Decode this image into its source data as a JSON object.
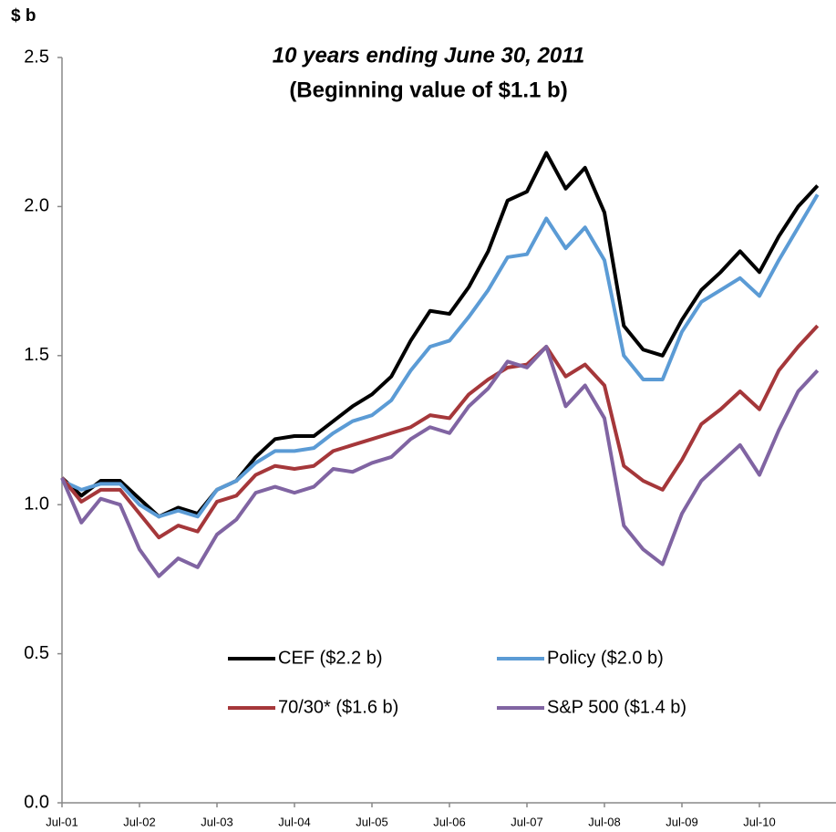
{
  "chart_data": {
    "type": "line",
    "title": "10 years ending June 30, 2011",
    "subtitle": "(Beginning value of $1.1 b)",
    "y_label": "$ b",
    "categories": [
      "Jul-01",
      null,
      null,
      null,
      "Jul-02",
      null,
      null,
      null,
      "Jul-03",
      null,
      null,
      null,
      "Jul-04",
      null,
      null,
      null,
      "Jul-05",
      null,
      null,
      null,
      "Jul-06",
      null,
      null,
      null,
      "Jul-07",
      null,
      null,
      null,
      "Jul-08",
      null,
      null,
      null,
      "Jul-09",
      null,
      null,
      null,
      "Jul-10",
      null,
      null,
      null
    ],
    "series": [
      {
        "name": "CEF ($2.2 b)",
        "color": "#000000",
        "values": [
          1.09,
          1.03,
          1.08,
          1.08,
          1.02,
          0.96,
          0.99,
          0.97,
          1.05,
          1.08,
          1.16,
          1.22,
          1.23,
          1.23,
          1.28,
          1.33,
          1.37,
          1.43,
          1.55,
          1.65,
          1.64,
          1.73,
          1.85,
          2.02,
          2.05,
          2.18,
          2.06,
          2.13,
          1.98,
          1.6,
          1.52,
          1.5,
          1.62,
          1.72,
          1.78,
          1.85,
          1.78,
          1.9,
          2.0,
          2.07
        ]
      },
      {
        "name": "Policy ($2.0 b)",
        "color": "#5b9bd5",
        "values": [
          1.08,
          1.05,
          1.07,
          1.07,
          1.0,
          0.96,
          0.98,
          0.96,
          1.05,
          1.08,
          1.14,
          1.18,
          1.18,
          1.19,
          1.24,
          1.28,
          1.3,
          1.35,
          1.45,
          1.53,
          1.55,
          1.63,
          1.72,
          1.83,
          1.84,
          1.96,
          1.86,
          1.93,
          1.82,
          1.5,
          1.42,
          1.42,
          1.58,
          1.68,
          1.72,
          1.76,
          1.7,
          1.82,
          1.93,
          2.04
        ]
      },
      {
        "name": "70/30* ($1.6 b)",
        "color": "#a5373a",
        "values": [
          1.09,
          1.01,
          1.05,
          1.05,
          0.97,
          0.89,
          0.93,
          0.91,
          1.01,
          1.03,
          1.1,
          1.13,
          1.12,
          1.13,
          1.18,
          1.2,
          1.22,
          1.24,
          1.26,
          1.3,
          1.29,
          1.37,
          1.42,
          1.46,
          1.47,
          1.53,
          1.43,
          1.47,
          1.4,
          1.13,
          1.08,
          1.05,
          1.15,
          1.27,
          1.32,
          1.38,
          1.32,
          1.45,
          1.53,
          1.6
        ]
      },
      {
        "name": "S&P 500 ($1.4 b)",
        "color": "#8064a2",
        "values": [
          1.09,
          0.94,
          1.02,
          1.0,
          0.85,
          0.76,
          0.82,
          0.79,
          0.9,
          0.95,
          1.04,
          1.06,
          1.04,
          1.06,
          1.12,
          1.11,
          1.14,
          1.16,
          1.22,
          1.26,
          1.24,
          1.33,
          1.39,
          1.48,
          1.46,
          1.53,
          1.33,
          1.4,
          1.29,
          0.93,
          0.85,
          0.8,
          0.97,
          1.08,
          1.14,
          1.2,
          1.1,
          1.25,
          1.38,
          1.45
        ]
      }
    ],
    "ylim": [
      0,
      2.5
    ],
    "yticks": [
      {
        "value": 0,
        "label": "0.0"
      },
      0.5,
      {
        "value": 1,
        "label": "1.0"
      },
      1.5,
      {
        "value": 2,
        "label": "2.0"
      },
      2.5
    ],
    "grid": false
  }
}
